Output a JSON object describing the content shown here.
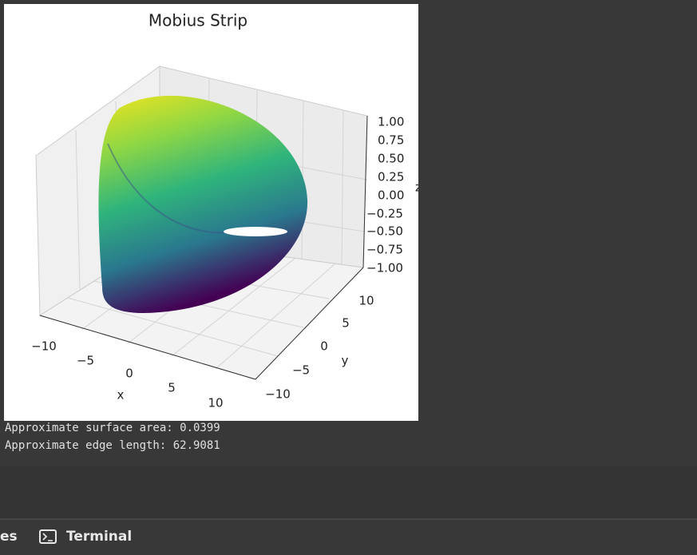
{
  "figure": {
    "title": "Mobius Strip",
    "zticks": [
      "1.00",
      "0.75",
      "0.50",
      "0.25",
      "0.00",
      "−0.25",
      "−0.50",
      "−0.75",
      "−1.00"
    ],
    "xticks": [
      "−10",
      "−5",
      "0",
      "5",
      "10"
    ],
    "yticks": [
      "10",
      "5",
      "0",
      "−5",
      "−10"
    ],
    "xlabel": "x",
    "ylabel": "y",
    "zlabel": "z"
  },
  "output": [
    "Approximate surface area: 0.0399",
    "Approximate edge length: 62.9081"
  ],
  "tabs": [
    "es",
    "Terminal"
  ]
}
